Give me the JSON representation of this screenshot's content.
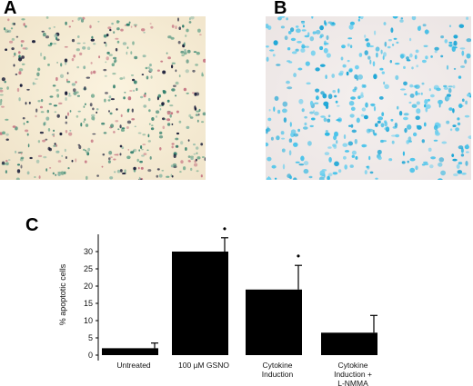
{
  "panels": {
    "a_label": "A",
    "b_label": "B",
    "c_label": "C"
  },
  "micrograph_a": {
    "stain": "mixed",
    "colors": [
      "#1b1f3a",
      "#2e7d6a",
      "#6fa88e",
      "#c77a86",
      "#8fb9a7"
    ]
  },
  "micrograph_b": {
    "stain": "blue",
    "colors": [
      "#2fb8e3",
      "#49c3ea",
      "#6fd0ef",
      "#1aa5d6"
    ]
  },
  "chart_data": {
    "type": "bar",
    "ylabel": "% apoptotic cells",
    "ylim": [
      0,
      35
    ],
    "yticks": [
      0,
      5,
      10,
      15,
      20,
      25,
      30
    ],
    "grid": false,
    "categories": [
      [
        "Untreated"
      ],
      [
        "100 µM GSNO"
      ],
      [
        "Cytokine",
        "Induction"
      ],
      [
        "Cytokine",
        "Induction +",
        "L-NMMA"
      ]
    ],
    "values": [
      2,
      30,
      19,
      6.5
    ],
    "errors": [
      1.5,
      4,
      7,
      5
    ],
    "significance": [
      "",
      "•",
      "•",
      ""
    ],
    "bar_color": "#000000"
  }
}
